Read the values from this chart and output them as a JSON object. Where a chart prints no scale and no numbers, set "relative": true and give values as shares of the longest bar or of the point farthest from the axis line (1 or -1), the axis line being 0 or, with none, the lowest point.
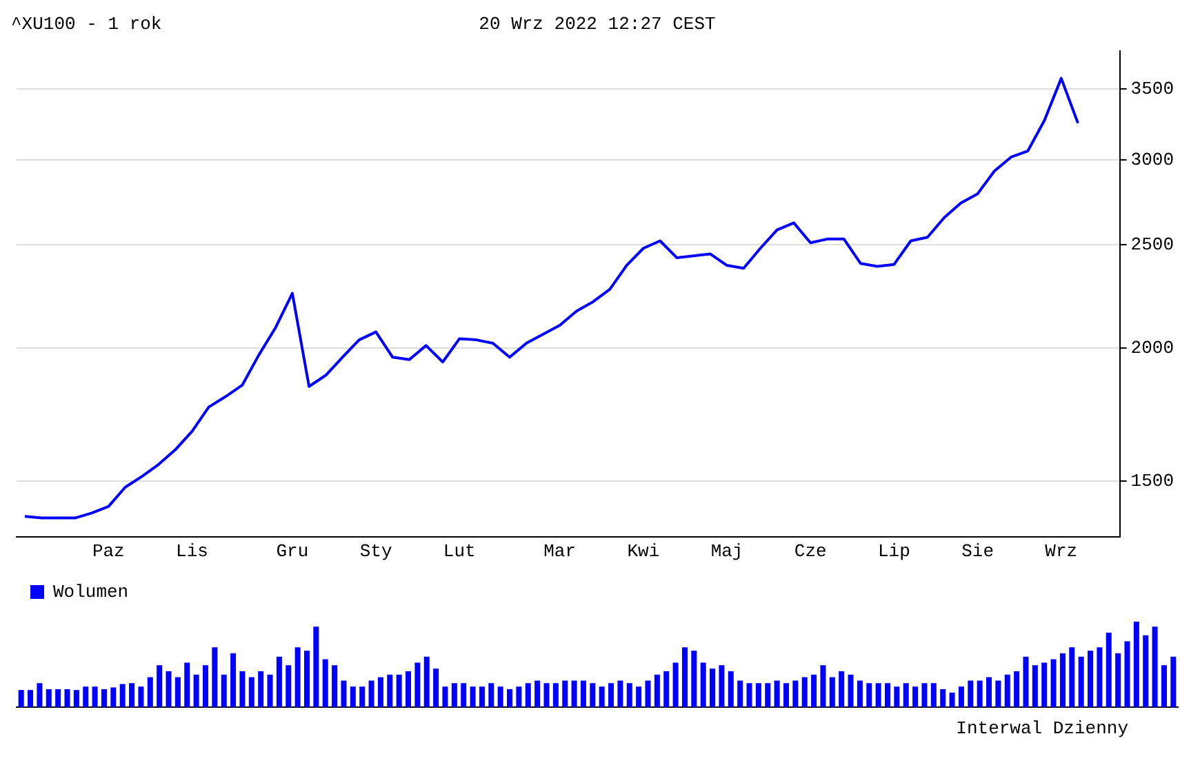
{
  "chart_data": [
    {
      "type": "line",
      "title": "^XU100 - 1 rok",
      "subtitle": "20 Wrz 2022 12:27 CEST",
      "categories": [
        null,
        null,
        null,
        null,
        null,
        "Paz",
        null,
        null,
        null,
        null,
        "Lis",
        null,
        null,
        null,
        null,
        null,
        "Gru",
        null,
        null,
        null,
        null,
        "Sty",
        null,
        null,
        null,
        null,
        "Lut",
        null,
        null,
        null,
        null,
        null,
        "Mar",
        null,
        null,
        null,
        null,
        "Kwi",
        null,
        null,
        null,
        null,
        "Maj",
        null,
        null,
        null,
        null,
        "Cze",
        null,
        null,
        null,
        null,
        "Lip",
        null,
        null,
        null,
        null,
        "Sie",
        null,
        null,
        null,
        null,
        "Wrz",
        null,
        null,
        null
      ],
      "series": [
        {
          "color": "#0000ff",
          "values": [
            1390,
            1385,
            1385,
            1385,
            1400,
            1420,
            1480,
            1515,
            1555,
            1605,
            1670,
            1760,
            1800,
            1845,
            1970,
            2090,
            2250,
            1840,
            1885,
            1960,
            2035,
            2070,
            1960,
            1950,
            2010,
            1940,
            2040,
            2035,
            2020,
            1960,
            2020,
            2060,
            2100,
            2165,
            2210,
            2270,
            2390,
            2480,
            2520,
            2430,
            2440,
            2450,
            2390,
            2375,
            2480,
            2580,
            2620,
            2510,
            2530,
            2530,
            2400,
            2385,
            2395,
            2520,
            2540,
            2650,
            2735,
            2790,
            2930,
            3020,
            3060,
            3270,
            3580,
            3250,
            null,
            null
          ]
        }
      ],
      "ylim": [
        1330,
        3800
      ],
      "yticks": [
        1500,
        2000,
        2500,
        3000,
        3500
      ],
      "log": "y",
      "grid": "y",
      "marker": "none",
      "line_style": "solid"
    },
    {
      "type": "bar",
      "relative": true,
      "legend": "top left",
      "annotations": [
        "Interwal Dzienny"
      ],
      "categories": [
        null,
        null,
        null,
        null,
        null,
        null,
        null,
        null,
        null,
        null,
        null,
        null,
        null,
        null,
        null,
        null,
        null,
        null,
        null,
        null,
        null,
        null,
        null,
        null,
        null,
        null,
        null,
        null,
        null,
        null,
        null,
        null,
        null,
        null,
        null,
        null,
        null,
        null,
        null,
        null,
        null,
        null,
        null,
        null,
        null,
        null,
        null,
        null,
        null,
        null,
        null,
        null,
        null,
        null,
        null,
        null,
        null,
        null,
        null,
        null,
        null,
        null,
        null,
        null,
        null,
        null,
        null,
        null,
        null,
        null,
        null,
        null,
        null,
        null,
        null,
        null,
        null,
        null,
        null,
        null,
        null,
        null,
        null,
        null,
        null,
        null,
        null,
        null,
        null,
        null,
        null,
        null,
        null,
        null,
        null,
        null,
        null,
        null,
        null,
        null,
        null,
        null,
        null,
        null,
        null,
        null,
        null,
        null,
        null,
        null,
        null,
        null,
        null,
        null,
        null,
        null,
        null,
        null,
        null,
        null,
        null,
        null,
        null,
        null,
        null,
        null
      ],
      "series": [
        {
          "name": "Wolumen",
          "color": "#0000ff",
          "values": [
            0.2,
            0.2,
            0.28,
            0.21,
            0.21,
            0.21,
            0.2,
            0.24,
            0.24,
            0.21,
            0.23,
            0.27,
            0.28,
            0.24,
            0.35,
            0.49,
            0.42,
            0.35,
            0.52,
            0.38,
            0.49,
            0.7,
            0.38,
            0.63,
            0.42,
            0.35,
            0.42,
            0.38,
            0.59,
            0.49,
            0.7,
            0.66,
            0.94,
            0.56,
            0.49,
            0.31,
            0.24,
            0.24,
            0.31,
            0.35,
            0.38,
            0.38,
            0.42,
            0.52,
            0.59,
            0.45,
            0.24,
            0.28,
            0.28,
            0.24,
            0.24,
            0.28,
            0.24,
            0.21,
            0.24,
            0.28,
            0.31,
            0.28,
            0.28,
            0.31,
            0.31,
            0.31,
            0.28,
            0.24,
            0.28,
            0.31,
            0.28,
            0.24,
            0.31,
            0.38,
            0.42,
            0.52,
            0.7,
            0.66,
            0.52,
            0.45,
            0.49,
            0.42,
            0.31,
            0.28,
            0.28,
            0.28,
            0.31,
            0.28,
            0.31,
            0.35,
            0.38,
            0.49,
            0.35,
            0.42,
            0.38,
            0.31,
            0.28,
            0.28,
            0.28,
            0.24,
            0.28,
            0.24,
            0.28,
            0.28,
            0.21,
            0.17,
            0.24,
            0.31,
            0.31,
            0.35,
            0.31,
            0.38,
            0.42,
            0.59,
            0.49,
            0.52,
            0.56,
            0.63,
            0.7,
            0.59,
            0.66,
            0.7,
            0.87,
            0.63,
            0.77,
            1,
            0.84,
            0.94,
            0.49,
            0.59
          ]
        }
      ]
    }
  ]
}
